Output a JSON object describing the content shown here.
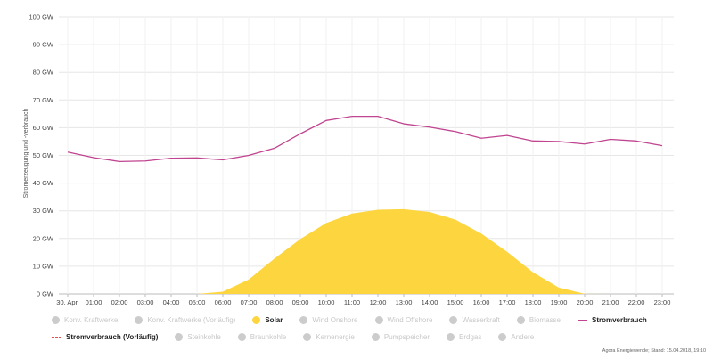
{
  "chart_data": {
    "type": "area",
    "ylabel": "Stromerzeugung und -verbrauch",
    "ylim": [
      0,
      100
    ],
    "y_ticks": [
      "0 GW",
      "10 GW",
      "20 GW",
      "30 GW",
      "40 GW",
      "50 GW",
      "60 GW",
      "70 GW",
      "80 GW",
      "90 GW",
      "100 GW"
    ],
    "x_ticks": [
      "30. Apr.",
      "01:00",
      "02:00",
      "03:00",
      "04:00",
      "05:00",
      "06:00",
      "07:00",
      "08:00",
      "09:00",
      "10:00",
      "11:00",
      "12:00",
      "13:00",
      "14:00",
      "15:00",
      "16:00",
      "17:00",
      "18:00",
      "19:00",
      "20:00",
      "21:00",
      "22:00",
      "23:00"
    ],
    "grid": true,
    "series": [
      {
        "name": "Solar",
        "type": "area",
        "color": "#fdd53f",
        "values": [
          0,
          0,
          0,
          0,
          0,
          0,
          0.8,
          5.2,
          12.8,
          19.8,
          25.6,
          29.0,
          30.4,
          30.6,
          29.6,
          26.8,
          21.8,
          15.2,
          7.8,
          2.3,
          0.05,
          0,
          0,
          0
        ]
      },
      {
        "name": "Stromverbrauch",
        "type": "line",
        "color": "#c0448f",
        "values": [
          51.2,
          49.2,
          47.8,
          48.0,
          49.0,
          49.1,
          48.4,
          50.0,
          52.6,
          57.8,
          62.6,
          64.1,
          64.1,
          61.4,
          60.2,
          58.6,
          56.2,
          57.2,
          55.2,
          55.0,
          54.1,
          55.8,
          55.2,
          53.5
        ]
      }
    ]
  },
  "legend": {
    "rows": [
      [
        {
          "label": "Konv. Kraftwerke",
          "marker": "dot",
          "color": "#cccccc",
          "active": false
        },
        {
          "label": "Konv. Kraftwerke (Vorläufig)",
          "marker": "dot",
          "color": "#cccccc",
          "active": false
        },
        {
          "label": "Solar",
          "marker": "dot",
          "color": "#fdd53f",
          "active": true
        },
        {
          "label": "Wind Onshore",
          "marker": "dot",
          "color": "#cccccc",
          "active": false
        },
        {
          "label": "Wind Offshore",
          "marker": "dot",
          "color": "#cccccc",
          "active": false
        },
        {
          "label": "Wasserkraft",
          "marker": "dot",
          "color": "#cccccc",
          "active": false
        },
        {
          "label": "Biomasse",
          "marker": "dot",
          "color": "#cccccc",
          "active": false
        },
        {
          "label": "Stromverbrauch",
          "marker": "line",
          "color": "#c0448f",
          "active": true
        }
      ],
      [
        {
          "label": "Stromverbrauch (Vorläufig)",
          "marker": "dashed",
          "color": "#e05050",
          "active": true
        },
        {
          "label": "Steinkohle",
          "marker": "dot",
          "color": "#cccccc",
          "active": false
        },
        {
          "label": "Braunkohle",
          "marker": "dot",
          "color": "#cccccc",
          "active": false
        },
        {
          "label": "Kernenergie",
          "marker": "dot",
          "color": "#cccccc",
          "active": false
        },
        {
          "label": "Pumpspeicher",
          "marker": "dot",
          "color": "#cccccc",
          "active": false
        },
        {
          "label": "Erdgas",
          "marker": "dot",
          "color": "#cccccc",
          "active": false
        },
        {
          "label": "Andere",
          "marker": "dot",
          "color": "#cccccc",
          "active": false
        }
      ]
    ]
  },
  "source_note": "Agora Energiewende; Stand: 15.04.2018, 19:10"
}
